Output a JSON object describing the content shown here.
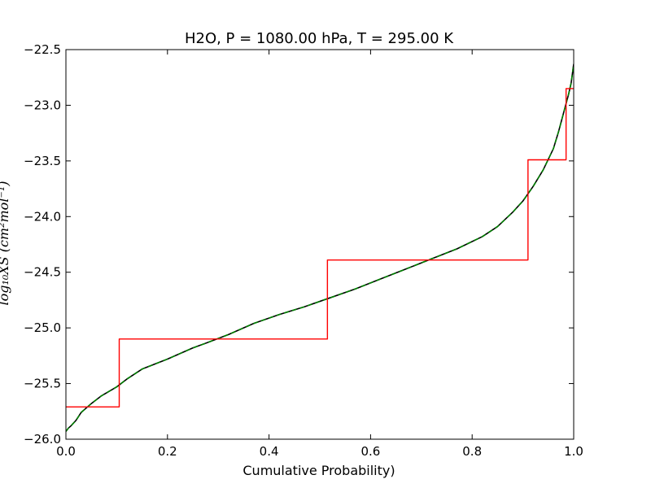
{
  "chart_data": {
    "type": "line",
    "title": "H2O, P = 1080.00 hPa, T = 295.00 K",
    "xlabel": "Cumulative Probability)",
    "ylabel": "log₁₀XS (cm²mol⁻¹)",
    "xlim": [
      0.0,
      1.0
    ],
    "ylim": [
      -26.0,
      -22.5
    ],
    "x_ticks": [
      0.0,
      0.2,
      0.4,
      0.6,
      0.8,
      1.0
    ],
    "x_tick_labels": [
      "0.0",
      "0.2",
      "0.4",
      "0.6",
      "0.8",
      "1.0"
    ],
    "y_ticks": [
      -26.0,
      -25.5,
      -25.0,
      -24.5,
      -24.0,
      -23.5,
      -23.0,
      -22.5
    ],
    "y_tick_labels": [
      "−26.0",
      "−25.5",
      "−25.0",
      "−24.5",
      "−24.0",
      "−23.5",
      "−23.0",
      "−22.5"
    ],
    "grid": false,
    "series": [
      {
        "style": "solid",
        "color": "#000000",
        "x": [
          0.0,
          0.005,
          0.01,
          0.02,
          0.03,
          0.05,
          0.07,
          0.1,
          0.12,
          0.15,
          0.2,
          0.25,
          0.28,
          0.32,
          0.37,
          0.42,
          0.47,
          0.52,
          0.57,
          0.62,
          0.67,
          0.72,
          0.77,
          0.82,
          0.85,
          0.88,
          0.9,
          0.92,
          0.94,
          0.96,
          0.97,
          0.98,
          0.99,
          0.995,
          1.0
        ],
        "y": [
          -25.93,
          -25.9,
          -25.88,
          -25.83,
          -25.76,
          -25.68,
          -25.61,
          -25.53,
          -25.46,
          -25.37,
          -25.28,
          -25.18,
          -25.13,
          -25.06,
          -24.96,
          -24.88,
          -24.81,
          -24.73,
          -24.65,
          -24.56,
          -24.47,
          -24.38,
          -24.29,
          -24.18,
          -24.09,
          -23.96,
          -23.86,
          -23.73,
          -23.58,
          -23.39,
          -23.24,
          -23.07,
          -22.9,
          -22.8,
          -22.63
        ]
      },
      {
        "style": "dashed",
        "color": "#008000",
        "x": [
          0.0,
          0.005,
          0.01,
          0.02,
          0.03,
          0.05,
          0.07,
          0.1,
          0.12,
          0.15,
          0.2,
          0.25,
          0.28,
          0.32,
          0.37,
          0.42,
          0.47,
          0.52,
          0.57,
          0.62,
          0.67,
          0.72,
          0.77,
          0.82,
          0.85,
          0.88,
          0.9,
          0.92,
          0.94,
          0.96,
          0.97,
          0.98,
          0.99,
          0.995,
          1.0
        ],
        "y": [
          -25.93,
          -25.9,
          -25.88,
          -25.83,
          -25.76,
          -25.68,
          -25.61,
          -25.53,
          -25.46,
          -25.37,
          -25.28,
          -25.18,
          -25.13,
          -25.06,
          -24.96,
          -24.88,
          -24.81,
          -24.73,
          -24.65,
          -24.56,
          -24.47,
          -24.38,
          -24.29,
          -24.18,
          -24.09,
          -23.96,
          -23.86,
          -23.73,
          -23.58,
          -23.39,
          -23.24,
          -23.07,
          -22.9,
          -22.8,
          -22.63
        ]
      },
      {
        "style": "step",
        "color": "#ff0000",
        "x": [
          0.0,
          0.105,
          0.105,
          0.515,
          0.515,
          0.91,
          0.91,
          0.985,
          0.985,
          1.0
        ],
        "y": [
          -25.71,
          -25.71,
          -25.1,
          -25.1,
          -24.39,
          -24.39,
          -23.49,
          -23.49,
          -22.85,
          -22.85
        ]
      }
    ]
  }
}
